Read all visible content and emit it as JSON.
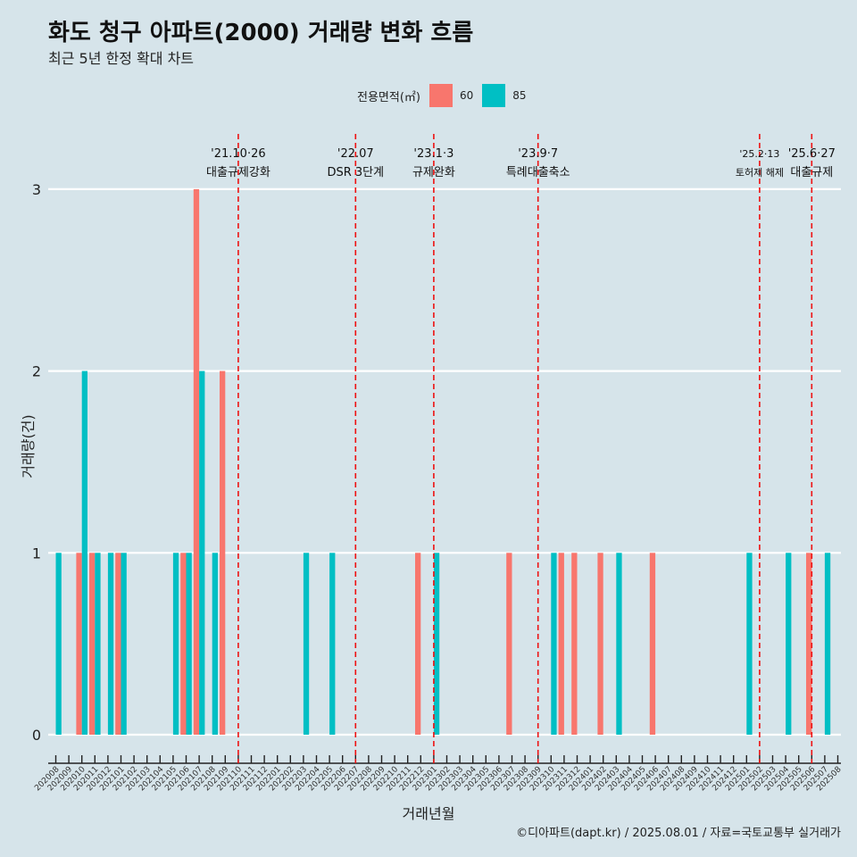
{
  "title": "화도 청구 아파트(2000) 거래량 변화 흐름",
  "subtitle": "최근 5년 한정 확대 차트",
  "legend": {
    "title": "전용면적(㎡)",
    "items": [
      {
        "label": "60",
        "color": "#f8766d"
      },
      {
        "label": "85",
        "color": "#00bfc4"
      }
    ]
  },
  "caption": "©디아파트(dapt.kr) / 2025.08.01 / 자료=국토교통부 실거래가",
  "chart_data": {
    "type": "bar",
    "xlabel": "거래년월",
    "ylabel": "거래량(건)",
    "ylim": [
      0,
      3
    ],
    "yticks": [
      0,
      1,
      2,
      3
    ],
    "grid": true,
    "legend_position": "top",
    "categories": [
      "202008",
      "202009",
      "202010",
      "202011",
      "202012",
      "202101",
      "202102",
      "202103",
      "202104",
      "202105",
      "202106",
      "202107",
      "202108",
      "202109",
      "202110",
      "202111",
      "202112",
      "202201",
      "202202",
      "202203",
      "202204",
      "202205",
      "202206",
      "202207",
      "202208",
      "202209",
      "202210",
      "202211",
      "202212",
      "202301",
      "202302",
      "202303",
      "202304",
      "202305",
      "202306",
      "202307",
      "202308",
      "202309",
      "202310",
      "202311",
      "202312",
      "202401",
      "202402",
      "202403",
      "202404",
      "202405",
      "202406",
      "202407",
      "202408",
      "202409",
      "202410",
      "202411",
      "202412",
      "202501",
      "202502",
      "202503",
      "202504",
      "202505",
      "202506",
      "202507",
      "202508"
    ],
    "series": [
      {
        "name": "60",
        "color": "#f8766d",
        "values": [
          0,
          0,
          1,
          1,
          0,
          1,
          0,
          0,
          0,
          0,
          1,
          3,
          0,
          2,
          0,
          0,
          0,
          0,
          0,
          0,
          0,
          0,
          0,
          0,
          0,
          0,
          0,
          0,
          1,
          0,
          0,
          0,
          0,
          0,
          0,
          1,
          0,
          0,
          0,
          1,
          1,
          0,
          1,
          0,
          0,
          0,
          1,
          0,
          0,
          0,
          0,
          0,
          0,
          0,
          0,
          0,
          0,
          0,
          1,
          0,
          0
        ]
      },
      {
        "name": "85",
        "color": "#00bfc4",
        "values": [
          1,
          0,
          2,
          1,
          1,
          1,
          0,
          0,
          0,
          1,
          1,
          2,
          1,
          0,
          0,
          0,
          0,
          0,
          0,
          1,
          0,
          1,
          0,
          0,
          0,
          0,
          0,
          0,
          0,
          1,
          0,
          0,
          0,
          0,
          0,
          0,
          0,
          0,
          1,
          0,
          0,
          0,
          0,
          1,
          0,
          0,
          0,
          0,
          0,
          0,
          0,
          0,
          0,
          1,
          0,
          0,
          1,
          0,
          0,
          1,
          0
        ]
      }
    ],
    "annotations": [
      {
        "x": "202110",
        "line1": "'21.10·26",
        "line2": "대출규제강화"
      },
      {
        "x": "202207",
        "line1": "'22.07",
        "line2": "DSR 3단계"
      },
      {
        "x": "202301",
        "line1": "'23.1·3",
        "line2": "규제완화"
      },
      {
        "x": "202309",
        "line1": "'23.9·7",
        "line2": "특례대출축소"
      },
      {
        "x": "202502",
        "line1": "'25.2·13",
        "line2": "토허제 해제"
      },
      {
        "x": "202506",
        "line1": "'25.6·27",
        "line2": "대출규제"
      }
    ]
  }
}
